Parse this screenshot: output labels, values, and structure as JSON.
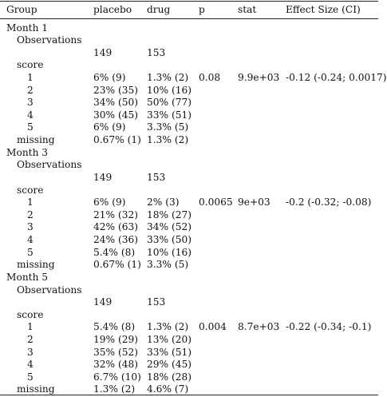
{
  "columns": [
    "Group",
    "placebo",
    "drug",
    "p",
    "stat",
    "Effect Size (CI)"
  ],
  "rows": [
    {
      "level": 0,
      "cells": [
        "Month 1",
        "",
        "",
        "",
        "",
        ""
      ]
    },
    {
      "level": 1,
      "cells": [
        "Observations",
        "",
        "",
        "",
        "",
        ""
      ]
    },
    {
      "level": 1,
      "cells": [
        "",
        "149",
        "153",
        "",
        "",
        ""
      ]
    },
    {
      "level": 1,
      "cells": [
        "score",
        "",
        "",
        "",
        "",
        ""
      ]
    },
    {
      "level": 2,
      "cells": [
        "1",
        "6% (9)",
        "1.3% (2)",
        "0.08",
        "9.9e+03",
        "-0.12 (-0.24; 0.0017)"
      ]
    },
    {
      "level": 2,
      "cells": [
        "2",
        "23% (35)",
        "10% (16)",
        "",
        "",
        ""
      ]
    },
    {
      "level": 2,
      "cells": [
        "3",
        "34% (50)",
        "50% (77)",
        "",
        "",
        ""
      ]
    },
    {
      "level": 2,
      "cells": [
        "4",
        "30% (45)",
        "33% (51)",
        "",
        "",
        ""
      ]
    },
    {
      "level": 2,
      "cells": [
        "5",
        "6% (9)",
        "3.3% (5)",
        "",
        "",
        ""
      ]
    },
    {
      "level": 1,
      "cells": [
        "missing",
        "0.67% (1)",
        "1.3% (2)",
        "",
        "",
        ""
      ]
    },
    {
      "level": 0,
      "cells": [
        "Month 3",
        "",
        "",
        "",
        "",
        ""
      ]
    },
    {
      "level": 1,
      "cells": [
        "Observations",
        "",
        "",
        "",
        "",
        ""
      ]
    },
    {
      "level": 1,
      "cells": [
        "",
        "149",
        "153",
        "",
        "",
        ""
      ]
    },
    {
      "level": 1,
      "cells": [
        "score",
        "",
        "",
        "",
        "",
        ""
      ]
    },
    {
      "level": 2,
      "cells": [
        "1",
        "6% (9)",
        "2% (3)",
        "0.0065",
        "9e+03",
        "-0.2 (-0.32; -0.08)"
      ]
    },
    {
      "level": 2,
      "cells": [
        "2",
        "21% (32)",
        "18% (27)",
        "",
        "",
        ""
      ]
    },
    {
      "level": 2,
      "cells": [
        "3",
        "42% (63)",
        "34% (52)",
        "",
        "",
        ""
      ]
    },
    {
      "level": 2,
      "cells": [
        "4",
        "24% (36)",
        "33% (50)",
        "",
        "",
        ""
      ]
    },
    {
      "level": 2,
      "cells": [
        "5",
        "5.4% (8)",
        "10% (16)",
        "",
        "",
        ""
      ]
    },
    {
      "level": 1,
      "cells": [
        "missing",
        "0.67% (1)",
        "3.3% (5)",
        "",
        "",
        ""
      ]
    },
    {
      "level": 0,
      "cells": [
        "Month 5",
        "",
        "",
        "",
        "",
        ""
      ]
    },
    {
      "level": 1,
      "cells": [
        "Observations",
        "",
        "",
        "",
        "",
        ""
      ]
    },
    {
      "level": 1,
      "cells": [
        "",
        "149",
        "153",
        "",
        "",
        ""
      ]
    },
    {
      "level": 1,
      "cells": [
        "score",
        "",
        "",
        "",
        "",
        ""
      ]
    },
    {
      "level": 2,
      "cells": [
        "1",
        "5.4% (8)",
        "1.3% (2)",
        "0.004",
        "8.7e+03",
        "-0.22 (-0.34; -0.1)"
      ]
    },
    {
      "level": 2,
      "cells": [
        "2",
        "19% (29)",
        "13% (20)",
        "",
        "",
        ""
      ]
    },
    {
      "level": 2,
      "cells": [
        "3",
        "35% (52)",
        "33% (51)",
        "",
        "",
        ""
      ]
    },
    {
      "level": 2,
      "cells": [
        "4",
        "32% (48)",
        "29% (45)",
        "",
        "",
        ""
      ]
    },
    {
      "level": 2,
      "cells": [
        "5",
        "6.7% (10)",
        "18% (28)",
        "",
        "",
        ""
      ]
    },
    {
      "level": 1,
      "cells": [
        "missing",
        "1.3% (2)",
        "4.6% (7)",
        "",
        "",
        ""
      ]
    }
  ]
}
